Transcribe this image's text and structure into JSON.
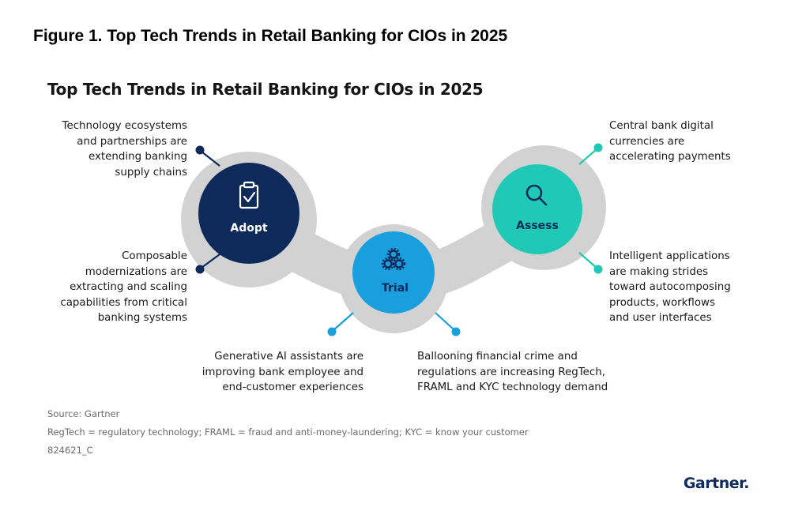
{
  "figure_title": "Figure 1. Top Tech Trends in Retail Banking for CIOs in 2025",
  "diagram_title": "Top Tech Trends in Retail Banking for CIOs in 2025",
  "nodes": {
    "adopt": {
      "label": "Adopt",
      "icon": "clipboard-check-icon",
      "color": "#0e2a5a"
    },
    "trial": {
      "label": "Trial",
      "icon": "gears-icon",
      "color": "#1a9fde"
    },
    "assess": {
      "label": "Assess",
      "icon": "magnifier-icon",
      "color": "#1fc9b5"
    }
  },
  "callouts": {
    "adopt_top": "Technology ecosystems\nand partnerships are\nextending banking\nsupply chains",
    "adopt_bottom": "Composable\nmodernizations are\nextracting and scaling\ncapabilities from critical\nbanking systems",
    "trial_left": "Generative AI assistants are\nimproving bank employee and\nend-customer experiences",
    "trial_right": "Ballooning financial crime and\nregulations are increasing RegTech,\nFRAML and KYC technology demand",
    "assess_top": "Central bank digital\ncurrencies are\naccelerating payments",
    "assess_bottom": "Intelligent applications\nare making strides\ntoward autocomposing\nproducts, workflows\nand user interfaces"
  },
  "footer": {
    "source": "Source: Gartner",
    "note": "RegTech = regulatory technology; FRAML = fraud and anti-money-laundering; KYC = know your customer",
    "id": "824621_C"
  },
  "brand": "Gartner."
}
